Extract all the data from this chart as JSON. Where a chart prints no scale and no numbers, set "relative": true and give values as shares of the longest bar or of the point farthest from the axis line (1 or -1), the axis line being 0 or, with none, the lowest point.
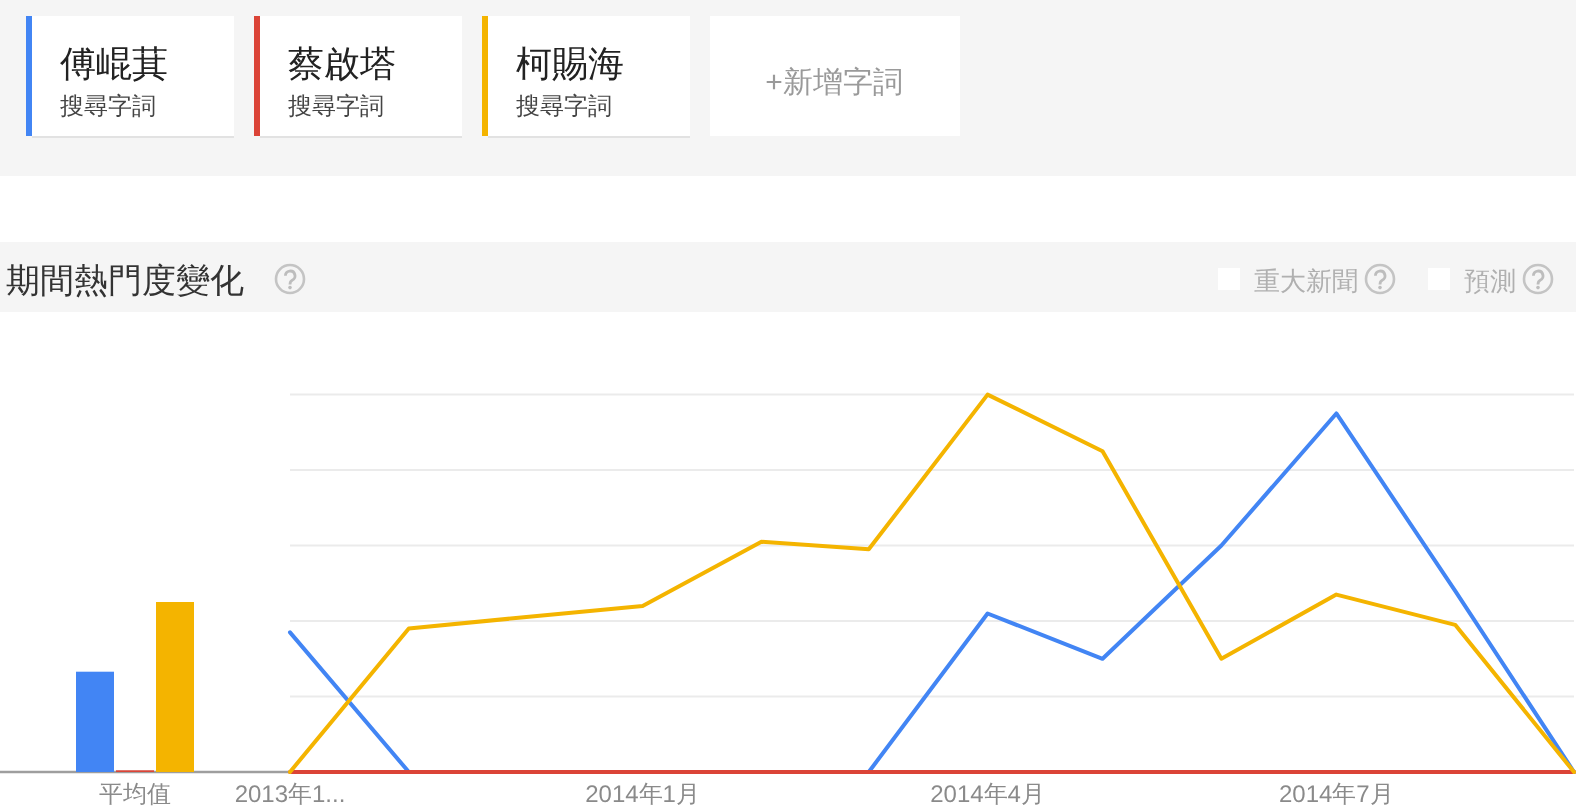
{
  "chart_data": [
    {
      "type": "bar",
      "categories": [
        "平均值"
      ],
      "relative": true,
      "series": [
        {
          "color": "#4285f4",
          "values": [
            0.59
          ]
        },
        {
          "color": "#db4437",
          "values": [
            0.01
          ]
        },
        {
          "color": "#f4b400",
          "values": [
            1
          ]
        }
      ]
    },
    {
      "type": "line",
      "title": "期間熱門度變化",
      "relative": true,
      "grid": "y",
      "legend": "top",
      "x": [
        "2013-10",
        "2013-11",
        "2013-12",
        "2014-01",
        "2014-02",
        "2014-03",
        "2014-04",
        "2014-05",
        "2014-06",
        "2014-07",
        "2014-08",
        "2014-09"
      ],
      "xlim": [
        "2013-10",
        "2014-09"
      ],
      "xticks": [
        {
          "value": "2013-10",
          "label": "2013年1..."
        },
        {
          "value": "2014-01",
          "label": "2014年1月"
        },
        {
          "value": "2014-04",
          "label": "2014年4月"
        },
        {
          "value": "2014-07",
          "label": "2014年7月"
        }
      ],
      "series": [
        {
          "name": "傅崐萁",
          "color": "#4285f4",
          "values": [
            0.37,
            0,
            0,
            0,
            0,
            0,
            0.42,
            0.3,
            0.6,
            0.95,
            0.48,
            0
          ]
        },
        {
          "name": "蔡啟塔",
          "color": "#db4437",
          "values": [
            0,
            0,
            0,
            0,
            0,
            0,
            0,
            0,
            0,
            0,
            0,
            0
          ]
        },
        {
          "name": "柯賜海",
          "color": "#f4b400",
          "values": [
            0,
            0.38,
            0.41,
            0.44,
            0.61,
            0.59,
            1,
            0.85,
            0.3,
            0.47,
            0.39,
            0
          ]
        }
      ],
      "annotations": [
        "搜尋字詞",
        "搜尋字詞",
        "搜尋字詞",
        "+新增字詞",
        "重大新聞",
        "預測"
      ]
    }
  ]
}
